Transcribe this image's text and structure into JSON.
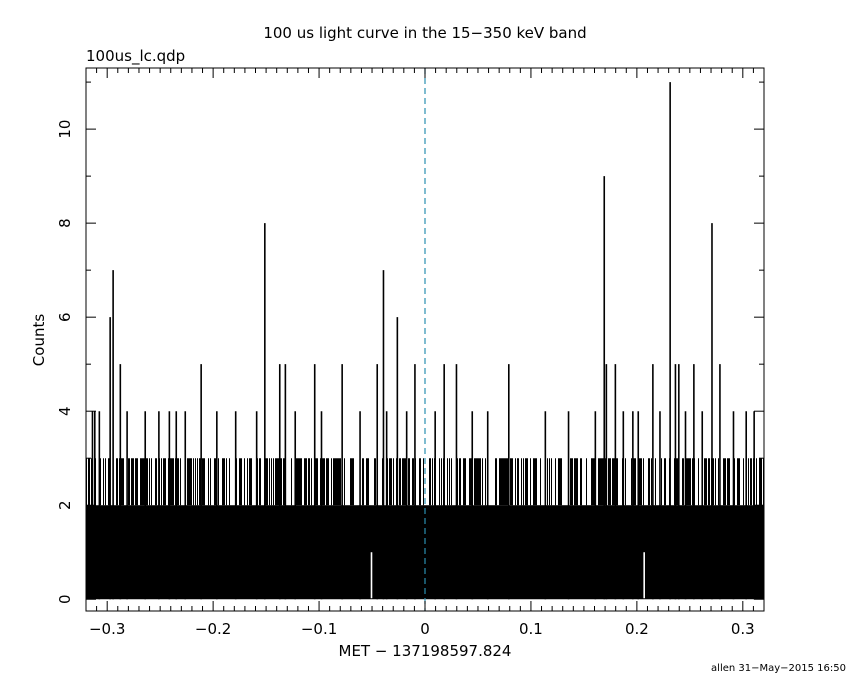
{
  "chart_data": {
    "type": "bar",
    "title": "100 us light curve in the 15−350 keV band",
    "file_label": "100us_lc.qdp",
    "xlabel": "MET − 137198597.824",
    "ylabel": "Counts",
    "footer": "allen 31−May−2015 16:50",
    "xlim": [
      -0.32,
      0.32
    ],
    "ylim": [
      -0.25,
      11.3
    ],
    "x_ticks": [
      -0.3,
      -0.2,
      -0.1,
      0,
      0.1,
      0.2,
      0.3
    ],
    "x_tick_labels": [
      "−0.3",
      "−0.2",
      "−0.1",
      "0",
      "0.1",
      "0.2",
      "0.3"
    ],
    "y_ticks": [
      0,
      2,
      4,
      6,
      8,
      10
    ],
    "y_tick_labels": [
      "0",
      "2",
      "4",
      "6",
      "8",
      "10"
    ],
    "bin_width": 0.0001,
    "typical_level": 2,
    "trigger_line": {
      "x": 0,
      "color": "#2a8fb0",
      "style": "dashed"
    },
    "colors": {
      "bars": "#000000",
      "axes": "#000000",
      "background": "#ffffff"
    },
    "gaps": [
      [
        -0.0517,
        -0.0493
      ],
      [
        0.2059,
        0.2079
      ]
    ],
    "peaks": [
      {
        "x": -0.3139,
        "y": 4
      },
      {
        "x": -0.3117,
        "y": 4
      },
      {
        "x": -0.3074,
        "y": 4
      },
      {
        "x": -0.2972,
        "y": 6
      },
      {
        "x": -0.2944,
        "y": 7
      },
      {
        "x": -0.2876,
        "y": 5
      },
      {
        "x": -0.2812,
        "y": 4
      },
      {
        "x": -0.2641,
        "y": 4
      },
      {
        "x": -0.2512,
        "y": 4
      },
      {
        "x": -0.2413,
        "y": 4
      },
      {
        "x": -0.2348,
        "y": 4
      },
      {
        "x": -0.2263,
        "y": 4
      },
      {
        "x": -0.2113,
        "y": 5
      },
      {
        "x": -0.1965,
        "y": 4
      },
      {
        "x": -0.1787,
        "y": 4
      },
      {
        "x": -0.1589,
        "y": 4
      },
      {
        "x": -0.1512,
        "y": 8
      },
      {
        "x": -0.1371,
        "y": 5
      },
      {
        "x": -0.1318,
        "y": 5
      },
      {
        "x": -0.1225,
        "y": 4
      },
      {
        "x": -0.1041,
        "y": 5
      },
      {
        "x": -0.0977,
        "y": 4
      },
      {
        "x": -0.0782,
        "y": 5
      },
      {
        "x": -0.0613,
        "y": 4
      },
      {
        "x": -0.0451,
        "y": 5
      },
      {
        "x": -0.0392,
        "y": 7
      },
      {
        "x": -0.0362,
        "y": 4
      },
      {
        "x": -0.0261,
        "y": 6
      },
      {
        "x": -0.0173,
        "y": 4
      },
      {
        "x": -0.0095,
        "y": 5
      },
      {
        "x": 0.0096,
        "y": 4
      },
      {
        "x": 0.0181,
        "y": 5
      },
      {
        "x": 0.0297,
        "y": 5
      },
      {
        "x": 0.0446,
        "y": 4
      },
      {
        "x": 0.0592,
        "y": 4
      },
      {
        "x": 0.0791,
        "y": 5
      },
      {
        "x": 0.1136,
        "y": 4
      },
      {
        "x": 0.1355,
        "y": 4
      },
      {
        "x": 0.1608,
        "y": 4
      },
      {
        "x": 0.1692,
        "y": 9
      },
      {
        "x": 0.1712,
        "y": 5
      },
      {
        "x": 0.1797,
        "y": 5
      },
      {
        "x": 0.1872,
        "y": 4
      },
      {
        "x": 0.1962,
        "y": 4
      },
      {
        "x": 0.2013,
        "y": 4
      },
      {
        "x": 0.2151,
        "y": 5
      },
      {
        "x": 0.2218,
        "y": 4
      },
      {
        "x": 0.2314,
        "y": 11
      },
      {
        "x": 0.2364,
        "y": 5
      },
      {
        "x": 0.2396,
        "y": 5
      },
      {
        "x": 0.2459,
        "y": 4
      },
      {
        "x": 0.2538,
        "y": 5
      },
      {
        "x": 0.2617,
        "y": 4
      },
      {
        "x": 0.2709,
        "y": 8
      },
      {
        "x": 0.2784,
        "y": 5
      },
      {
        "x": 0.2912,
        "y": 4
      },
      {
        "x": 0.3032,
        "y": 4
      },
      {
        "x": 0.3107,
        "y": 4
      }
    ]
  }
}
